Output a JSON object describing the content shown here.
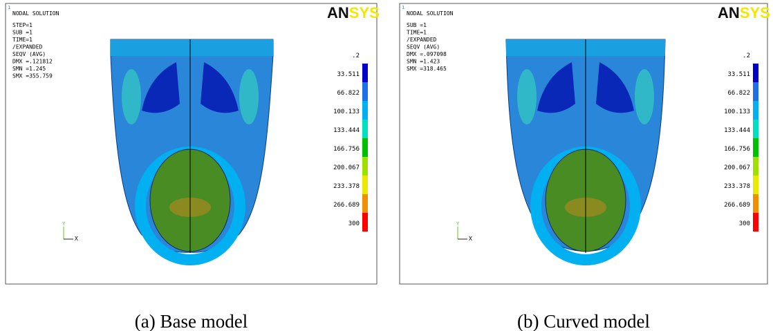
{
  "panels": [
    {
      "corner_mark": "1",
      "title": "NODAL SOLUTION",
      "info": [
        "STEP=1",
        "SUB =1",
        "TIME=1",
        "/EXPANDED",
        "SEQV      (AVG)",
        "DMX =.121812",
        "SMN =1.245",
        "SMX =355.759"
      ],
      "logo": {
        "dark": "AN",
        "light": "SYS"
      },
      "legend": {
        "labels": [
          ".2",
          "33.511",
          "66.822",
          "100.133",
          "133.444",
          "166.756",
          "200.067",
          "233.378",
          "266.689",
          "300"
        ],
        "colors": [
          "#0000c8",
          "#1f6fe8",
          "#00b0f0",
          "#00e0c0",
          "#00c000",
          "#a0e000",
          "#e8e800",
          "#f09000",
          "#ff0000"
        ]
      },
      "triad": {
        "y": "Y",
        "x": "X"
      },
      "caption": "(a)  Base model"
    },
    {
      "corner_mark": "1",
      "title": "NODAL SOLUTION",
      "info": [
        "SUB =1",
        "TIME=1",
        "/EXPANDED",
        "SEQV      (AVG)",
        "DMX =.097098",
        "SMN =1.423",
        "SMX =318.465"
      ],
      "logo": {
        "dark": "AN",
        "light": "SYS"
      },
      "legend": {
        "labels": [
          ".2",
          "33.511",
          "66.822",
          "100.133",
          "133.444",
          "166.756",
          "200.067",
          "233.378",
          "266.689",
          "300"
        ],
        "colors": [
          "#0000c8",
          "#1f6fe8",
          "#00b0f0",
          "#00e0c0",
          "#00c000",
          "#a0e000",
          "#e8e800",
          "#f09000",
          "#ff0000"
        ]
      },
      "triad": {
        "y": "Y",
        "x": "X"
      },
      "caption": "(b)  Curved model"
    }
  ]
}
